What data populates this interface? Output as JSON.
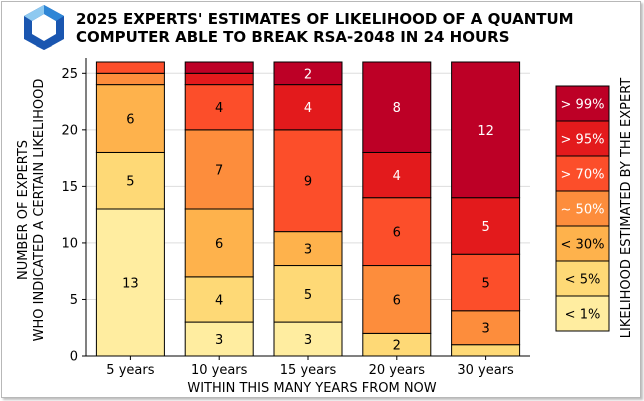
{
  "chart_data": {
    "type": "bar",
    "stacked": true,
    "title": "2025 EXPERTS' ESTIMATES OF LIKELIHOOD OF A QUANTUM COMPUTER ABLE TO BREAK RSA-2048 IN 24 HOURS",
    "title_lines": [
      "2025 EXPERTS' ESTIMATES OF LIKELIHOOD OF A QUANTUM",
      "COMPUTER ABLE TO BREAK RSA-2048 IN 24 HOURS"
    ],
    "xlabel": "WITHIN THIS MANY YEARS FROM NOW",
    "ylabel_lines": [
      "NUMBER OF EXPERTS",
      "WHO INDICATED A CERTAIN LIKELIHOOD"
    ],
    "legend_title": "LIKELIHOOD ESTIMATED BY THE EXPERT",
    "legend_position": "right",
    "categories": [
      "5 years",
      "10 years",
      "15 years",
      "20 years",
      "30 years"
    ],
    "ylim": [
      0,
      26
    ],
    "yticks": [
      0,
      5,
      10,
      15,
      20,
      25
    ],
    "grid": true,
    "series": [
      {
        "name": "< 1%",
        "color": "#ffeda0",
        "values": [
          13,
          3,
          3,
          0,
          0
        ]
      },
      {
        "name": "< 5%",
        "color": "#fed976",
        "values": [
          5,
          4,
          5,
          2,
          1
        ]
      },
      {
        "name": "< 30%",
        "color": "#feb24c",
        "values": [
          6,
          6,
          3,
          0,
          0
        ]
      },
      {
        "name": "~ 50%",
        "color": "#fd8d3c",
        "values": [
          1,
          7,
          0,
          6,
          3
        ]
      },
      {
        "name": "> 70%",
        "color": "#fc4e2a",
        "values": [
          1,
          4,
          9,
          6,
          5
        ]
      },
      {
        "name": "> 95%",
        "color": "#e31a1c",
        "values": [
          0,
          1,
          4,
          4,
          5
        ]
      },
      {
        "name": "> 99%",
        "color": "#bd0026",
        "values": [
          0,
          1,
          2,
          8,
          12
        ]
      }
    ]
  },
  "logo": {
    "colors": [
      "#1a56b0",
      "#2f86d6",
      "#8ec9f0"
    ]
  }
}
